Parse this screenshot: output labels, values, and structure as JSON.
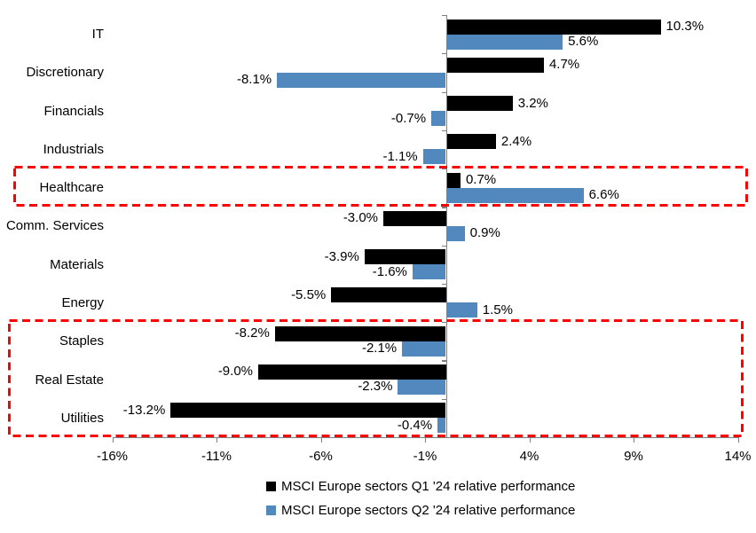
{
  "chart_data": {
    "type": "bar",
    "orientation": "horizontal",
    "title": "",
    "categories": [
      "IT",
      "Discretionary",
      "Financials",
      "Industrials",
      "Healthcare",
      "Comm. Services",
      "Materials",
      "Energy",
      "Staples",
      "Real Estate",
      "Utilities"
    ],
    "series": [
      {
        "name": "MSCI Europe sectors Q1 '24 relative performance",
        "color": "#000000",
        "values": [
          10.3,
          4.7,
          3.2,
          2.4,
          0.7,
          -3.0,
          -3.9,
          -5.5,
          -8.2,
          -9.0,
          -13.2
        ]
      },
      {
        "name": "MSCI Europe sectors Q2 '24 relative performance",
        "color": "#5189BE",
        "values": [
          5.6,
          -8.1,
          -0.7,
          -1.1,
          6.6,
          0.9,
          -1.6,
          1.5,
          -2.1,
          -2.3,
          -0.4
        ]
      }
    ],
    "x_tick_labels": [
      "-16%",
      "-11%",
      "-6%",
      "-1%",
      "4%",
      "9%",
      "14%"
    ],
    "x_tick_values": [
      -16,
      -11,
      -6,
      -1,
      4,
      9,
      14
    ],
    "xlim": [
      -16,
      14
    ],
    "grid": false,
    "legend_position": "bottom",
    "value_label_format": "one-decimal-percent",
    "axis_color": "#808080",
    "highlight_color": "#FF0000",
    "highlights": [
      {
        "name": "healthcare-box",
        "categories": [
          "Healthcare"
        ]
      },
      {
        "name": "defensives-box",
        "categories": [
          "Staples",
          "Real Estate",
          "Utilities"
        ]
      }
    ]
  }
}
